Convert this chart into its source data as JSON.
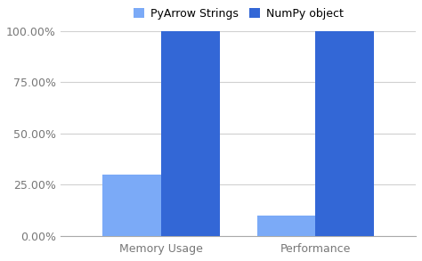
{
  "categories": [
    "Memory Usage",
    "Performance"
  ],
  "series": [
    {
      "name": "PyArrow Strings",
      "values": [
        0.3,
        0.1
      ],
      "color": "#7BAAF7"
    },
    {
      "name": "NumPy object",
      "values": [
        1.0,
        1.0
      ],
      "color": "#3367D6"
    }
  ],
  "ylim": [
    0,
    1.0
  ],
  "yticks": [
    0.0,
    0.25,
    0.5,
    0.75,
    1.0
  ],
  "ytick_labels": [
    "0.00%",
    "25.00%",
    "50.00%",
    "75.00%",
    "100.00%"
  ],
  "bar_width": 0.38,
  "background_color": "#ffffff",
  "grid_color": "#d0d0d0",
  "legend_fontsize": 9,
  "tick_fontsize": 9,
  "tick_color": "#777777"
}
